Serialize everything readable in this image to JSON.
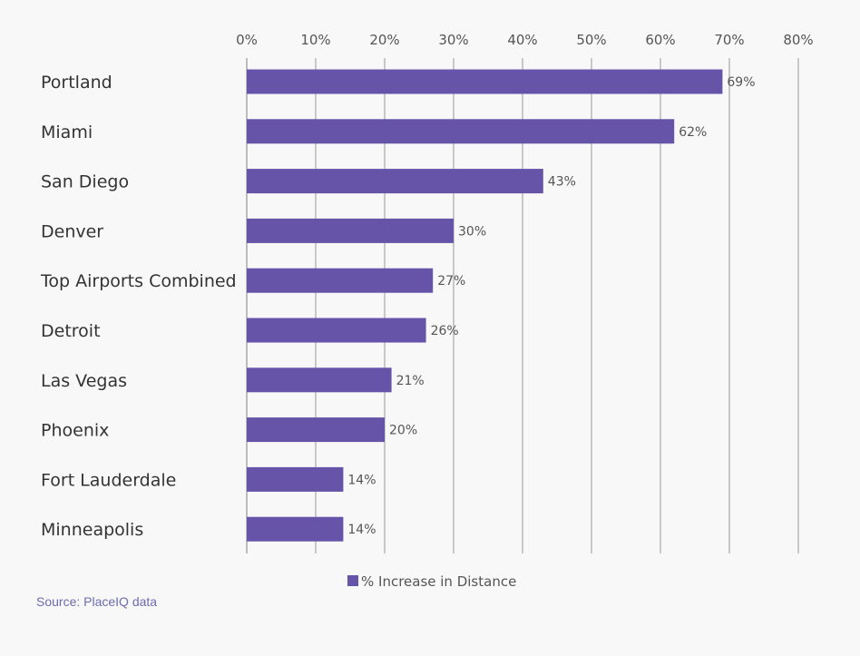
{
  "chart_data": {
    "type": "bar",
    "orientation": "horizontal",
    "categories": [
      "Portland",
      "Miami",
      "San Diego",
      "Denver",
      "Top Airports Combined",
      "Detroit",
      "Las Vegas",
      "Phoenix",
      "Fort Lauderdale",
      "Minneapolis"
    ],
    "values": [
      69,
      62,
      43,
      30,
      27,
      26,
      21,
      20,
      14,
      14
    ],
    "data_labels": [
      "69%",
      "62%",
      "43%",
      "30%",
      "27%",
      "26%",
      "21%",
      "20%",
      "14%",
      "14%"
    ],
    "x_ticks": [
      "0%",
      "10%",
      "20%",
      "30%",
      "40%",
      "50%",
      "60%",
      "70%",
      "80%"
    ],
    "xlim": [
      0,
      80
    ],
    "x_axis_position": "top",
    "grid": "vertical",
    "legend": {
      "label": "% Increase in Distance",
      "placement": "bottom"
    },
    "bar_color": "#6554a8"
  },
  "source_text": "Source: PlaceIQ  data"
}
